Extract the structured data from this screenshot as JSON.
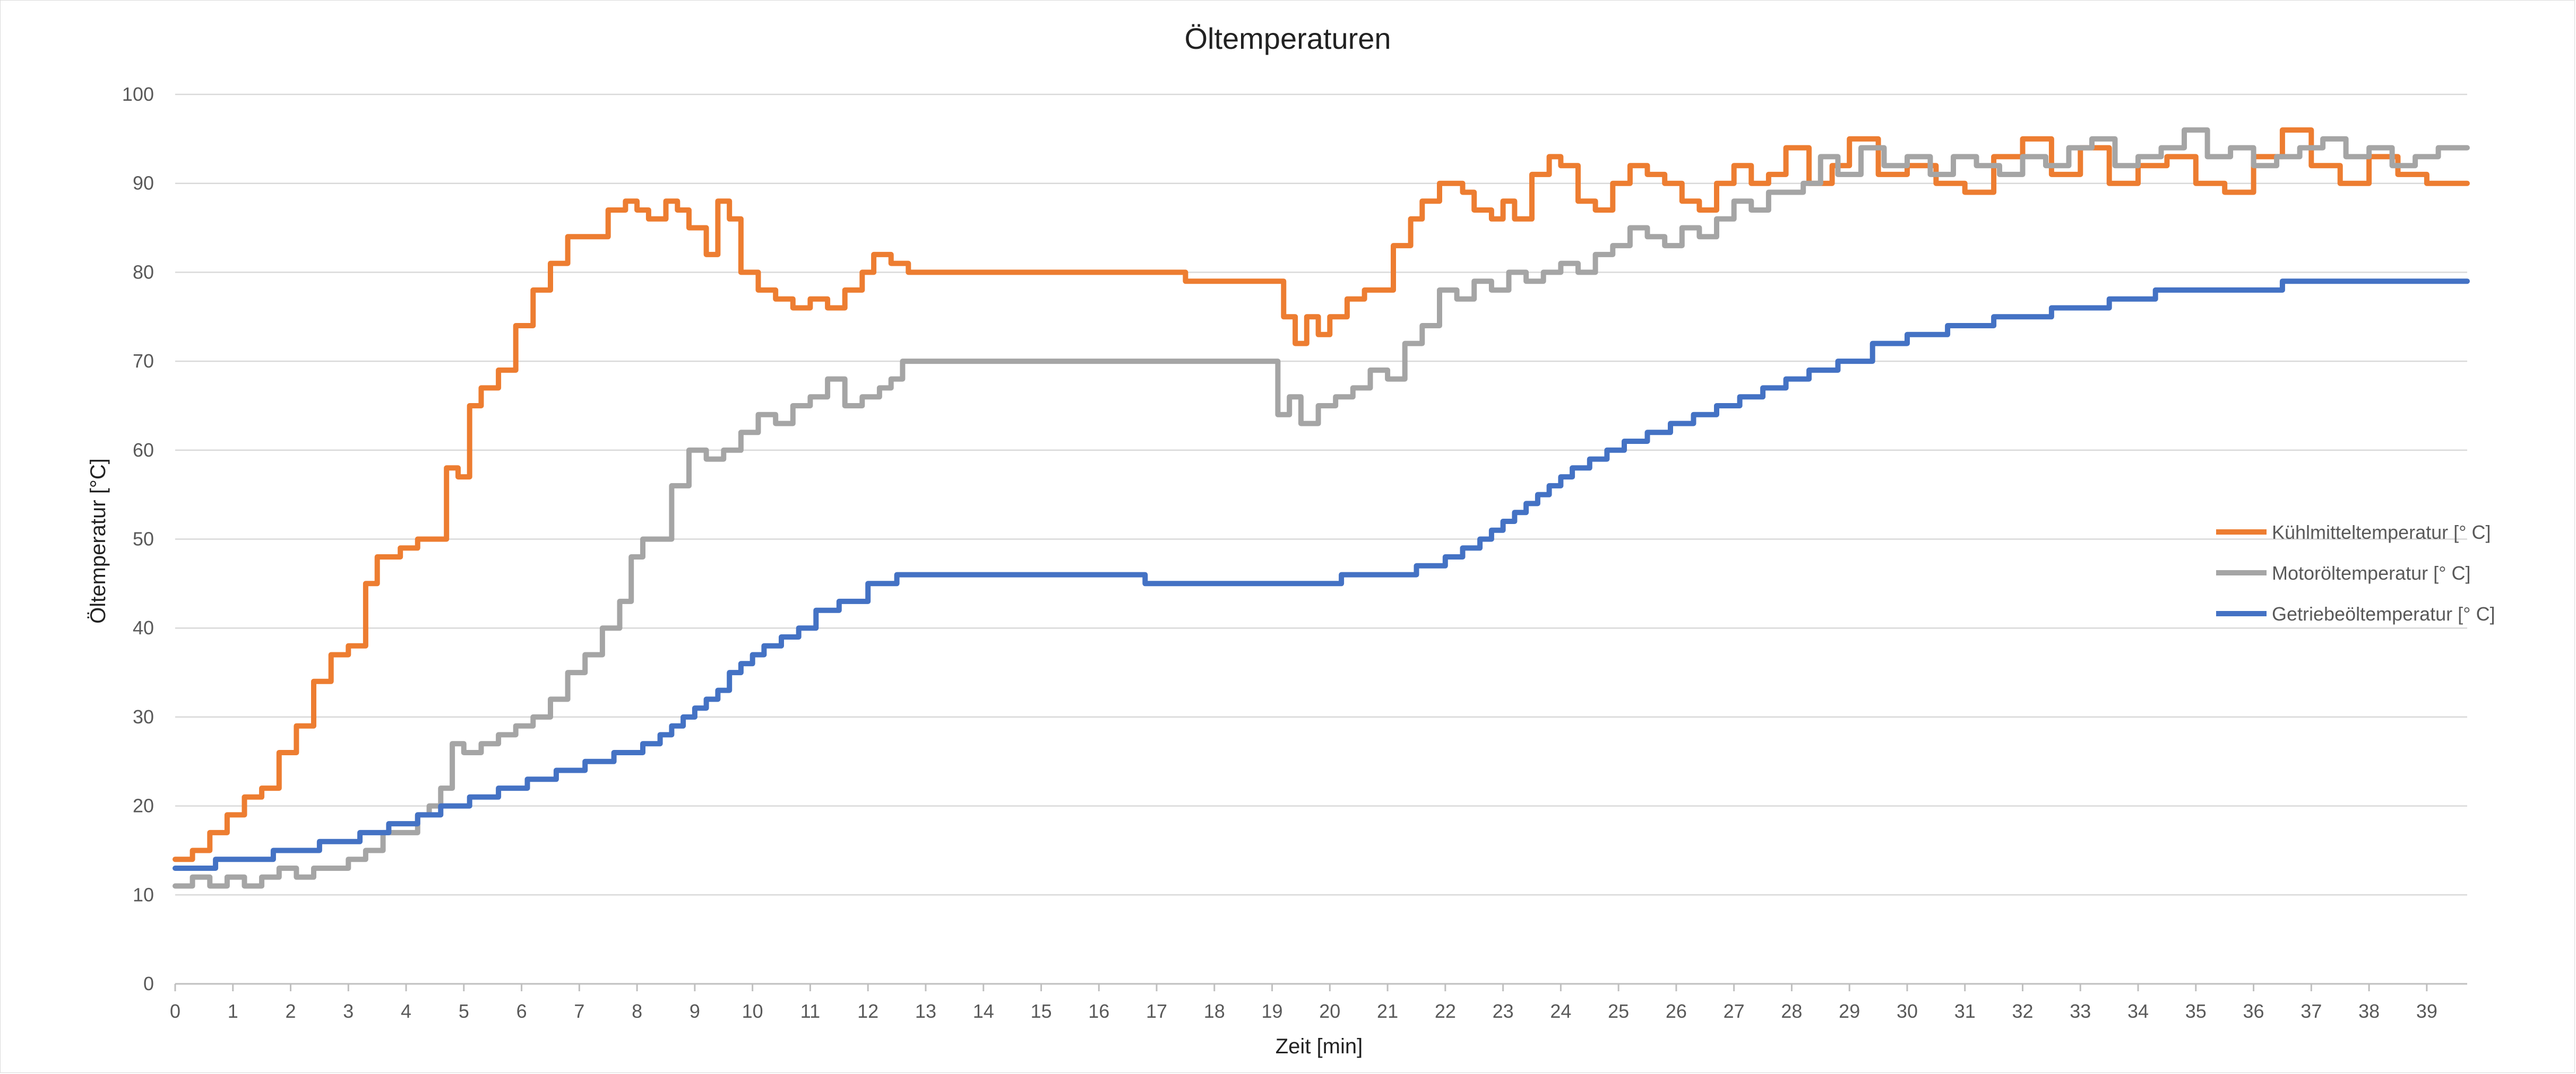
{
  "chart_data": {
    "type": "line",
    "title": "Öltemperaturen",
    "xlabel": "Zeit [min]",
    "ylabel": "Öltemperatur [°C]",
    "xlim": [
      0,
      39.7
    ],
    "ylim": [
      0,
      100
    ],
    "x_ticks": [
      0,
      1,
      2,
      3,
      4,
      5,
      6,
      7,
      8,
      9,
      10,
      11,
      12,
      13,
      14,
      15,
      16,
      17,
      18,
      19,
      20,
      21,
      22,
      23,
      24,
      25,
      26,
      27,
      28,
      29,
      30,
      31,
      32,
      33,
      34,
      35,
      36,
      37,
      38,
      39
    ],
    "y_ticks": [
      0,
      10,
      20,
      30,
      40,
      50,
      60,
      70,
      80,
      90,
      100
    ],
    "grid": "horizontal",
    "legend_position": "right",
    "series": [
      {
        "name": "Kühlmitteltemperatur [° C]",
        "color": "#ED7D31",
        "x": [
          0,
          0.3,
          0.6,
          0.9,
          1.2,
          1.5,
          1.8,
          2.1,
          2.4,
          2.7,
          3.0,
          3.3,
          3.5,
          3.7,
          3.9,
          4.2,
          4.5,
          4.7,
          4.9,
          5.1,
          5.3,
          5.6,
          5.9,
          6.2,
          6.5,
          6.8,
          7.2,
          7.5,
          7.8,
          8.0,
          8.2,
          8.5,
          8.7,
          8.9,
          9.2,
          9.4,
          9.6,
          9.8,
          10.1,
          10.4,
          10.7,
          11.0,
          11.3,
          11.6,
          11.9,
          12.1,
          12.4,
          12.7,
          13.5,
          15.0,
          16.0,
          17.0,
          17.5,
          18.0,
          18.5,
          19.0,
          19.2,
          19.4,
          19.6,
          19.8,
          20.0,
          20.3,
          20.6,
          20.9,
          21.1,
          21.4,
          21.6,
          21.9,
          22.1,
          22.3,
          22.5,
          22.8,
          23.0,
          23.2,
          23.5,
          23.8,
          24.0,
          24.3,
          24.6,
          24.9,
          25.2,
          25.5,
          25.8,
          26.1,
          26.4,
          26.7,
          27.0,
          27.3,
          27.6,
          27.9,
          28.3,
          28.7,
          29.0,
          29.5,
          30.0,
          30.5,
          31.0,
          31.5,
          32.0,
          32.5,
          33.0,
          33.5,
          34.0,
          34.5,
          35.0,
          35.5,
          36.0,
          36.5,
          37.0,
          37.5,
          38.0,
          38.5,
          39.0,
          39.7
        ],
        "values": [
          14,
          15,
          17,
          19,
          21,
          22,
          26,
          29,
          34,
          37,
          38,
          45,
          48,
          48,
          49,
          50,
          50,
          58,
          57,
          65,
          67,
          69,
          74,
          78,
          81,
          84,
          84,
          87,
          88,
          87,
          86,
          88,
          87,
          85,
          82,
          88,
          86,
          80,
          78,
          77,
          76,
          77,
          76,
          78,
          80,
          82,
          81,
          80,
          80,
          80,
          80,
          80,
          79,
          79,
          79,
          79,
          75,
          72,
          75,
          73,
          75,
          77,
          78,
          78,
          83,
          86,
          88,
          90,
          90,
          89,
          87,
          86,
          88,
          86,
          91,
          93,
          92,
          88,
          87,
          90,
          92,
          91,
          90,
          88,
          87,
          90,
          92,
          90,
          91,
          94,
          90,
          92,
          95,
          91,
          92,
          90,
          89,
          93,
          95,
          91,
          94,
          90,
          92,
          93,
          90,
          89,
          93,
          96,
          92,
          90,
          93,
          91,
          90,
          90
        ]
      },
      {
        "name": "Motoröltemperatur [° C]",
        "color": "#A5A5A5",
        "x": [
          0,
          0.3,
          0.6,
          0.9,
          1.2,
          1.5,
          1.8,
          2.1,
          2.4,
          2.7,
          3.0,
          3.3,
          3.6,
          3.9,
          4.2,
          4.4,
          4.6,
          4.8,
          5.0,
          5.3,
          5.6,
          5.9,
          6.2,
          6.5,
          6.8,
          7.1,
          7.4,
          7.7,
          7.9,
          8.1,
          8.3,
          8.6,
          8.9,
          9.2,
          9.5,
          9.8,
          10.1,
          10.4,
          10.7,
          11.0,
          11.3,
          11.6,
          11.9,
          12.2,
          12.4,
          12.6,
          13.0,
          15.0,
          17.0,
          18.0,
          19.0,
          19.1,
          19.3,
          19.5,
          19.8,
          20.1,
          20.4,
          20.7,
          21.0,
          21.3,
          21.6,
          21.9,
          22.2,
          22.5,
          22.8,
          23.1,
          23.4,
          23.7,
          24.0,
          24.3,
          24.6,
          24.9,
          25.2,
          25.5,
          25.8,
          26.1,
          26.4,
          26.7,
          27.0,
          27.3,
          27.6,
          27.9,
          28.2,
          28.5,
          28.8,
          29.2,
          29.6,
          30.0,
          30.4,
          30.8,
          31.2,
          31.6,
          32.0,
          32.4,
          32.8,
          33.2,
          33.6,
          34.0,
          34.4,
          34.8,
          35.2,
          35.6,
          36.0,
          36.4,
          36.8,
          37.2,
          37.6,
          38.0,
          38.4,
          38.8,
          39.2,
          39.7
        ],
        "values": [
          11,
          12,
          11,
          12,
          11,
          12,
          13,
          12,
          13,
          13,
          14,
          15,
          17,
          17,
          19,
          20,
          22,
          27,
          26,
          27,
          28,
          29,
          30,
          32,
          35,
          37,
          40,
          43,
          48,
          50,
          50,
          56,
          60,
          59,
          60,
          62,
          64,
          63,
          65,
          66,
          68,
          65,
          66,
          67,
          68,
          70,
          70,
          70,
          70,
          70,
          70,
          64,
          66,
          63,
          65,
          66,
          67,
          69,
          68,
          72,
          74,
          78,
          77,
          79,
          78,
          80,
          79,
          80,
          81,
          80,
          82,
          83,
          85,
          84,
          83,
          85,
          84,
          86,
          88,
          87,
          89,
          89,
          90,
          93,
          91,
          94,
          92,
          93,
          91,
          93,
          92,
          91,
          93,
          92,
          94,
          95,
          92,
          93,
          94,
          96,
          93,
          94,
          92,
          93,
          94,
          95,
          93,
          94,
          92,
          93,
          94,
          94
        ]
      },
      {
        "name": "Getriebeöltemperatur [° C]",
        "color": "#4472C4",
        "x": [
          0,
          0.7,
          1.7,
          2.5,
          3.2,
          3.7,
          4.2,
          4.6,
          5.1,
          5.6,
          6.1,
          6.6,
          7.1,
          7.6,
          8.1,
          8.4,
          8.6,
          8.8,
          9.0,
          9.2,
          9.4,
          9.6,
          9.8,
          10.0,
          10.2,
          10.5,
          10.8,
          11.1,
          11.5,
          12.0,
          12.5,
          13.0,
          14.0,
          15.0,
          16.0,
          16.8,
          17.5,
          18.5,
          19.5,
          20.2,
          21.0,
          21.5,
          22.0,
          22.3,
          22.6,
          22.8,
          23.0,
          23.2,
          23.4,
          23.6,
          23.8,
          24.0,
          24.2,
          24.5,
          24.8,
          25.1,
          25.5,
          25.9,
          26.3,
          26.7,
          27.1,
          27.5,
          27.9,
          28.3,
          28.8,
          29.4,
          30.0,
          30.7,
          31.5,
          32.5,
          33.5,
          34.3,
          35.3,
          36.5,
          38.0,
          39.7
        ],
        "values": [
          13,
          14,
          15,
          16,
          17,
          18,
          19,
          20,
          21,
          22,
          23,
          24,
          25,
          26,
          27,
          28,
          29,
          30,
          31,
          32,
          33,
          35,
          36,
          37,
          38,
          39,
          40,
          42,
          43,
          45,
          46,
          46,
          46,
          46,
          46,
          45,
          45,
          45,
          45,
          46,
          46,
          47,
          48,
          49,
          50,
          51,
          52,
          53,
          54,
          55,
          56,
          57,
          58,
          59,
          60,
          61,
          62,
          63,
          64,
          65,
          66,
          67,
          68,
          69,
          70,
          72,
          73,
          74,
          75,
          76,
          77,
          78,
          78,
          79,
          79,
          79
        ]
      }
    ]
  }
}
